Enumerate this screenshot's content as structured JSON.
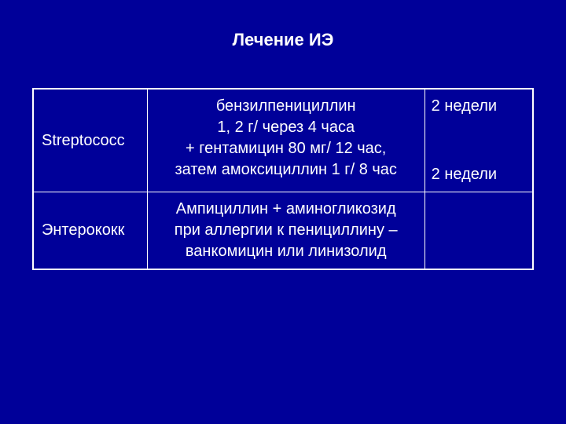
{
  "title": "Лечение ИЭ",
  "background_color": "#000099",
  "text_color": "#ffffff",
  "border_color": "#ffffff",
  "font_family": "Arial",
  "title_fontsize": 22,
  "cell_fontsize": 20,
  "table": {
    "rows": [
      {
        "organism": "Streptococc",
        "treatment_line1": "бензилпенициллин",
        "treatment_line2": "1, 2 г/ через 4 часа",
        "treatment_line3": "+ гентамицин 80 мг/ 12 час,",
        "treatment_line4": "затем амоксициллин 1 г/ 8 час",
        "duration_line1": "2 недели",
        "duration_line2": "2 недели"
      },
      {
        "organism": "Энтерококк",
        "treatment_line1": "Ампициллин + аминогликозид",
        "treatment_line2": "при аллергии к пенициллину –",
        "treatment_line3": "ванкомицин или линизолид",
        "duration": ""
      }
    ]
  }
}
